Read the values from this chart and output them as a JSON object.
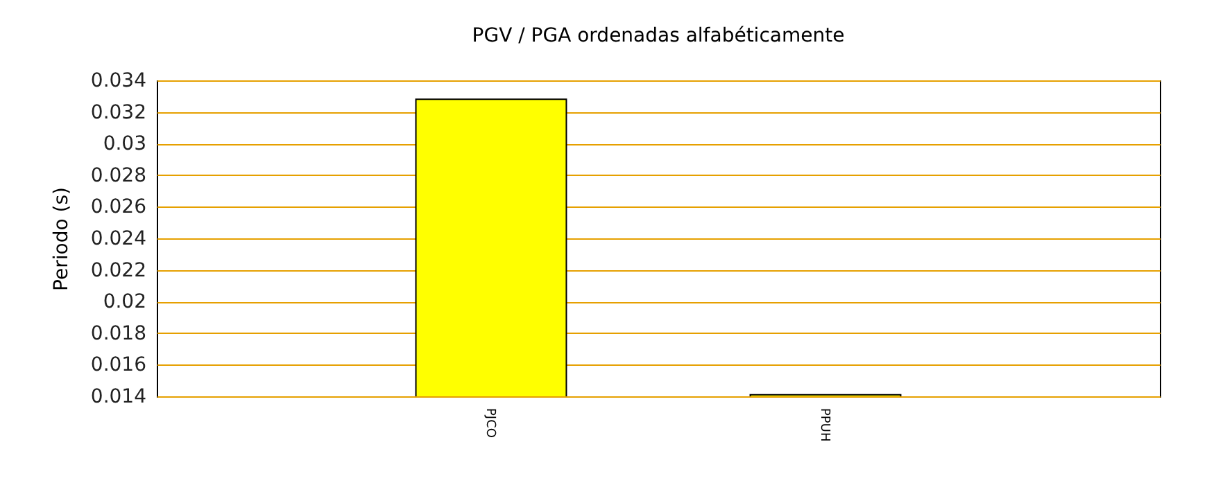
{
  "chart_data": {
    "type": "bar",
    "title": "PGV / PGA ordenadas alfabéticamente",
    "ylabel": "Periodo (s)",
    "categories": [
      "PJCO",
      "PPUH"
    ],
    "values": [
      0.0328,
      0.0141
    ],
    "color": "#ffff00",
    "ylim": [
      0.014,
      0.034
    ],
    "yticks": [
      0.014,
      0.016,
      0.018,
      0.02,
      0.022,
      0.024,
      0.026,
      0.028,
      0.03,
      0.032,
      0.034
    ],
    "grid": "y"
  }
}
